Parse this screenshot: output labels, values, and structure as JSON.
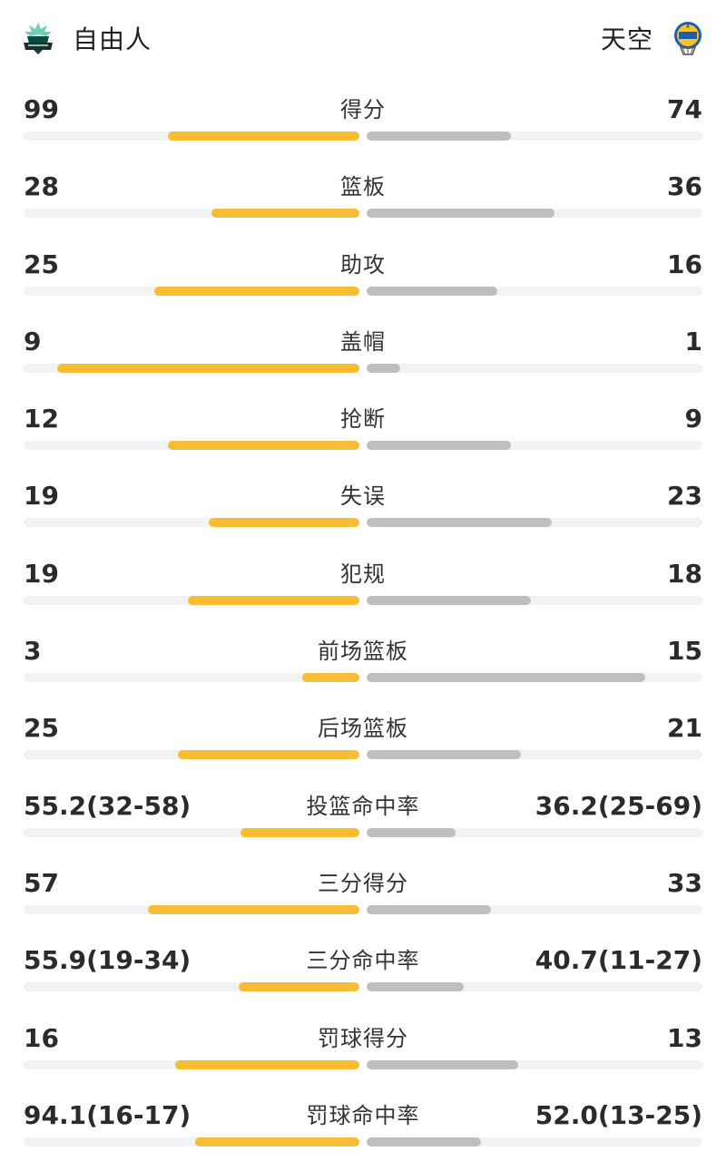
{
  "header": {
    "home_team": "自由人",
    "away_team": "天空",
    "home_logo_icon": "liberty-logo-icon",
    "away_logo_icon": "sky-logo-icon"
  },
  "colors": {
    "home_bar": "#f8bd33",
    "away_bar": "#bfbfbf",
    "track": "#f2f3f5"
  },
  "stats": [
    {
      "label": "得分",
      "home": "99",
      "away": "74",
      "home_fill": 0.57,
      "away_fill": 0.43
    },
    {
      "label": "篮板",
      "home": "28",
      "away": "36",
      "home_fill": 0.44,
      "away_fill": 0.56
    },
    {
      "label": "助攻",
      "home": "25",
      "away": "16",
      "home_fill": 0.61,
      "away_fill": 0.39
    },
    {
      "label": "盖帽",
      "home": "9",
      "away": "1",
      "home_fill": 0.9,
      "away_fill": 0.1
    },
    {
      "label": "抢断",
      "home": "12",
      "away": "9",
      "home_fill": 0.57,
      "away_fill": 0.43
    },
    {
      "label": "失误",
      "home": "19",
      "away": "23",
      "home_fill": 0.45,
      "away_fill": 0.55
    },
    {
      "label": "犯规",
      "home": "19",
      "away": "18",
      "home_fill": 0.51,
      "away_fill": 0.49
    },
    {
      "label": "前场篮板",
      "home": "3",
      "away": "15",
      "home_fill": 0.17,
      "away_fill": 0.83
    },
    {
      "label": "后场篮板",
      "home": "25",
      "away": "21",
      "home_fill": 0.54,
      "away_fill": 0.46
    },
    {
      "label": "投篮命中率",
      "home": "55.2(32-58)",
      "away": "36.2(25-69)",
      "home_fill": 0.355,
      "away_fill": 0.265
    },
    {
      "label": "三分得分",
      "home": "57",
      "away": "33",
      "home_fill": 0.63,
      "away_fill": 0.37
    },
    {
      "label": "三分命中率",
      "home": "55.9(19-34)",
      "away": "40.7(11-27)",
      "home_fill": 0.36,
      "away_fill": 0.29
    },
    {
      "label": "罚球得分",
      "home": "16",
      "away": "13",
      "home_fill": 0.55,
      "away_fill": 0.45
    },
    {
      "label": "罚球命中率",
      "home": "94.1(16-17)",
      "away": "52.0(13-25)",
      "home_fill": 0.49,
      "away_fill": 0.34
    }
  ]
}
